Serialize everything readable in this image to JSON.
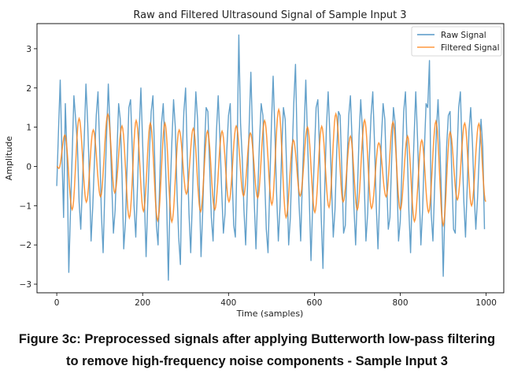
{
  "chart_data": {
    "type": "line",
    "title": "Raw and Filtered Ultrasound Signal of Sample Input 3",
    "xlabel": "Time (samples)",
    "ylabel": "Amplitude",
    "xlim": [
      -46,
      1041
    ],
    "ylim": [
      -3.22,
      3.64
    ],
    "xticks": [
      0,
      200,
      400,
      600,
      800,
      1000
    ],
    "xtick_labels": [
      "0",
      "200",
      "400",
      "600",
      "800",
      "1000"
    ],
    "yticks": [
      -3,
      -2,
      -1,
      0,
      1,
      2,
      3
    ],
    "ytick_labels": [
      "−3",
      "−2",
      "−1",
      "0",
      "1",
      "2",
      "3"
    ],
    "grid": false,
    "legend": {
      "placement": "top-right",
      "entries": [
        "Raw Signal",
        "Filtered Signal"
      ]
    },
    "series": [
      {
        "name": "Raw Signal",
        "color": "#1f77b4",
        "x_start": 0,
        "x_step": 4,
        "values": [
          -0.5,
          0.9,
          2.2,
          0.4,
          -1.3,
          1.6,
          0.2,
          -2.7,
          -1.1,
          0.3,
          1.8,
          1.2,
          0.6,
          -0.9,
          -1.6,
          -0.4,
          0.7,
          2.1,
          1.1,
          -0.3,
          -1.9,
          -1.0,
          0.2,
          1.3,
          1.9,
          0.5,
          -1.2,
          -2.2,
          -0.6,
          0.8,
          2.1,
          1.0,
          -0.4,
          -1.7,
          -1.1,
          0.3,
          1.6,
          1.2,
          -0.2,
          -2.1,
          -1.4,
          0.1,
          1.5,
          1.7,
          0.4,
          -1.0,
          -1.8,
          -0.5,
          0.9,
          2.0,
          0.6,
          -0.8,
          -2.3,
          -0.9,
          0.4,
          1.4,
          1.8,
          0.2,
          -1.5,
          -2.0,
          -0.3,
          1.1,
          1.6,
          0.5,
          -1.0,
          -2.9,
          -0.7,
          0.6,
          1.7,
          1.0,
          -0.6,
          -1.8,
          -2.5,
          0.2,
          1.4,
          2.0,
          0.3,
          -1.2,
          -2.2,
          -0.8,
          0.8,
          1.9,
          1.2,
          -0.5,
          -2.3,
          -1.1,
          0.5,
          1.5,
          1.4,
          0.0,
          -1.3,
          -1.9,
          -0.4,
          0.9,
          1.8,
          0.7,
          -0.6,
          -1.7,
          -1.2,
          0.4,
          1.3,
          1.6,
          -0.1,
          -1.5,
          -1.8,
          0.3,
          3.35,
          1.1,
          0.2,
          -1.1,
          -2.0,
          -0.6,
          1.0,
          2.4,
          0.8,
          -0.9,
          -2.1,
          -0.7,
          0.6,
          1.6,
          1.3,
          -0.2,
          -1.6,
          -2.2,
          -0.5,
          1.1,
          2.3,
          0.9,
          -0.7,
          -1.9,
          -1.0,
          0.5,
          1.5,
          1.2,
          -0.3,
          -2.0,
          -1.3,
          0.2,
          1.6,
          2.6,
          0.5,
          -0.9,
          -1.9,
          -0.4,
          0.9,
          2.2,
          0.7,
          -0.8,
          -2.4,
          -1.0,
          0.3,
          1.5,
          1.7,
          0.4,
          -1.3,
          -2.6,
          -0.6,
          1.0,
          1.9,
          0.8,
          -0.5,
          -1.8,
          -1.1,
          0.4,
          1.4,
          1.3,
          -0.1,
          -1.7,
          -1.5,
          0.1,
          1.3,
          1.8,
          0.6,
          -1.0,
          -2.0,
          -0.7,
          0.8,
          1.7,
          0.9,
          -0.4,
          -1.9,
          -1.2,
          0.2,
          1.3,
          1.9,
          0.6,
          -1.0,
          -2.1,
          -0.8,
          0.7,
          1.6,
          1.2,
          -0.3,
          -1.6,
          -1.3,
          0.2,
          1.5,
          1.1,
          -0.2,
          -1.9,
          -1.4,
          0.0,
          1.4,
          1.9,
          0.5,
          -1.1,
          -2.2,
          -0.6,
          0.7,
          1.9,
          0.8,
          -0.6,
          -2.0,
          -1.1,
          0.4,
          1.6,
          1.5,
          2.7,
          -1.2,
          -1.9,
          -0.5,
          0.9,
          1.7,
          0.6,
          -0.8,
          -2.8,
          -1.0,
          0.5,
          1.3,
          1.4,
          -0.2,
          -1.6,
          -1.7,
          0.2,
          1.5,
          1.9,
          0.4,
          -0.9,
          -1.8,
          -0.5,
          0.9,
          1.5,
          0.6,
          -0.7,
          -1.6,
          -0.8,
          0.3,
          1.2,
          0.5,
          -1.6
        ]
      },
      {
        "name": "Filtered Signal",
        "color": "#ff7f0e",
        "points_note_type": "extrema",
        "points": [
          [
            0,
            0
          ],
          [
            5,
            -0.05
          ],
          [
            19,
            0.8
          ],
          [
            36,
            -1.1
          ],
          [
            52,
            1.22
          ],
          [
            69,
            -0.91
          ],
          [
            85,
            0.93
          ],
          [
            102,
            -0.77
          ],
          [
            119,
            1.33
          ],
          [
            135,
            -0.67
          ],
          [
            152,
            1.03
          ],
          [
            169,
            -1.31
          ],
          [
            185,
            1.17
          ],
          [
            202,
            -1.14
          ],
          [
            218,
            1.1
          ],
          [
            235,
            -1.38
          ],
          [
            252,
            1.1
          ],
          [
            268,
            -1.41
          ],
          [
            285,
            0.93
          ],
          [
            302,
            -0.7
          ],
          [
            318,
            0.97
          ],
          [
            335,
            -1.15
          ],
          [
            351,
            0.9
          ],
          [
            368,
            -1.1
          ],
          [
            385,
            0.9
          ],
          [
            401,
            -0.9
          ],
          [
            418,
            1.03
          ],
          [
            435,
            -0.75
          ],
          [
            451,
            0.85
          ],
          [
            468,
            -0.8
          ],
          [
            484,
            1.17
          ],
          [
            501,
            -0.97
          ],
          [
            517,
            1.45
          ],
          [
            534,
            -1.3
          ],
          [
            551,
            0.67
          ],
          [
            567,
            -0.75
          ],
          [
            584,
            1.0
          ],
          [
            601,
            -1.17
          ],
          [
            617,
            1.02
          ],
          [
            634,
            -1.04
          ],
          [
            650,
            1.34
          ],
          [
            667,
            -0.9
          ],
          [
            684,
            0.77
          ],
          [
            700,
            -1.1
          ],
          [
            717,
            1.18
          ],
          [
            733,
            -1.07
          ],
          [
            750,
            0.6
          ],
          [
            767,
            -0.77
          ],
          [
            783,
            1.13
          ],
          [
            800,
            -1.1
          ],
          [
            817,
            0.77
          ],
          [
            833,
            -1.4
          ],
          [
            850,
            0.67
          ],
          [
            866,
            -1.17
          ],
          [
            883,
            1.15
          ],
          [
            900,
            -1.5
          ],
          [
            916,
            0.87
          ],
          [
            933,
            -0.85
          ],
          [
            950,
            1.1
          ],
          [
            966,
            -1.0
          ],
          [
            983,
            1.09
          ],
          [
            999,
            -0.9
          ]
        ]
      }
    ]
  },
  "caption": {
    "line1": "Figure 3c: Preprocessed signals after applying Butterworth low-pass filtering",
    "line2": "to remove high-frequency noise components - Sample Input 3"
  }
}
